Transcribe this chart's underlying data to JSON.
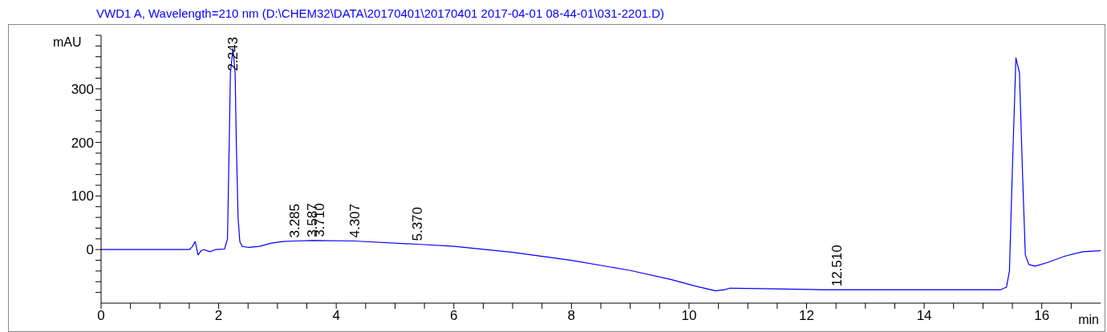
{
  "chart_data": {
    "type": "line",
    "title": "VWD1 A, Wavelength=210 nm (D:\\CHEM32\\DATA\\20170401\\20170401 2017-04-01 08-44-01\\031-2201.D)",
    "xlabel": "min",
    "ylabel": "mAU",
    "x": [
      0,
      1.5,
      1.55,
      1.6,
      1.65,
      1.7,
      1.75,
      1.85,
      1.95,
      2.1,
      2.15,
      2.18,
      2.2,
      2.243,
      2.28,
      2.3,
      2.33,
      2.36,
      2.4,
      2.5,
      2.7,
      2.9,
      3.1,
      3.3,
      3.6,
      4.3,
      5.37,
      6,
      7,
      8,
      9,
      9.7,
      10.1,
      10.45,
      10.6,
      10.7,
      11.2,
      12.3,
      13,
      14,
      15.3,
      15.4,
      15.45,
      15.5,
      15.56,
      15.62,
      15.67,
      15.72,
      15.78,
      15.89,
      16.1,
      16.4,
      16.7,
      17
    ],
    "series": [
      {
        "color": "#0000ff",
        "values": [
          0,
          0,
          5,
          15,
          -10,
          -2,
          0,
          -4,
          0,
          1,
          20,
          200,
          330,
          375,
          330,
          200,
          60,
          15,
          6,
          4,
          6,
          12,
          15,
          16,
          17,
          16,
          10,
          6,
          -5,
          -20,
          -39,
          -56,
          -68,
          -77,
          -75,
          -72,
          -73,
          -75,
          -75,
          -75,
          -75,
          -70,
          -40,
          150,
          358,
          330,
          150,
          -10,
          -28,
          -31,
          -24,
          -12,
          -4,
          -2
        ]
      }
    ],
    "annotations": [
      {
        "text": "2.243",
        "x": 2.243,
        "y": 375
      },
      {
        "text": "3.285",
        "x": 3.285,
        "y": 16
      },
      {
        "text": "3.587",
        "x": 3.587,
        "y": 17
      },
      {
        "text": "3.710",
        "x": 3.71,
        "y": 17
      },
      {
        "text": "4.307",
        "x": 4.307,
        "y": 16
      },
      {
        "text": "5.370",
        "x": 5.37,
        "y": 10
      },
      {
        "text": "12.510",
        "x": 12.51,
        "y": -75
      }
    ],
    "xlim": [
      0,
      17
    ],
    "ylim": [
      -100,
      400
    ],
    "xticks": [
      0,
      {
        "value": 0.5,
        "label": null
      },
      {
        "value": 1,
        "label": null
      },
      {
        "value": 1.5,
        "label": null
      },
      2,
      {
        "value": 2.5,
        "label": null
      },
      {
        "value": 3,
        "label": null
      },
      {
        "value": 3.5,
        "label": null
      },
      4,
      {
        "value": 4.5,
        "label": null
      },
      {
        "value": 5,
        "label": null
      },
      {
        "value": 5.5,
        "label": null
      },
      6,
      {
        "value": 6.5,
        "label": null
      },
      {
        "value": 7,
        "label": null
      },
      {
        "value": 7.5,
        "label": null
      },
      8,
      {
        "value": 8.5,
        "label": null
      },
      {
        "value": 9,
        "label": null
      },
      {
        "value": 9.5,
        "label": null
      },
      10,
      {
        "value": 10.5,
        "label": null
      },
      {
        "value": 11,
        "label": null
      },
      {
        "value": 11.5,
        "label": null
      },
      12,
      {
        "value": 12.5,
        "label": null
      },
      {
        "value": 13,
        "label": null
      },
      {
        "value": 13.5,
        "label": null
      },
      14,
      {
        "value": 14.5,
        "label": null
      },
      {
        "value": 15,
        "label": null
      },
      {
        "value": 15.5,
        "label": null
      },
      16,
      {
        "value": 16.5,
        "label": null
      }
    ],
    "yticks": [
      {
        "value": -80,
        "label": null
      },
      {
        "value": -60,
        "label": null
      },
      {
        "value": -40,
        "label": null
      },
      {
        "value": -20,
        "label": null
      },
      0,
      {
        "value": 20,
        "label": null
      },
      {
        "value": 40,
        "label": null
      },
      {
        "value": 60,
        "label": null
      },
      {
        "value": 80,
        "label": null
      },
      100,
      {
        "value": 120,
        "label": null
      },
      {
        "value": 140,
        "label": null
      },
      {
        "value": 160,
        "label": null
      },
      {
        "value": 180,
        "label": null
      },
      200,
      {
        "value": 220,
        "label": null
      },
      {
        "value": 240,
        "label": null
      },
      {
        "value": 260,
        "label": null
      },
      {
        "value": 280,
        "label": null
      },
      300,
      {
        "value": 320,
        "label": null
      },
      {
        "value": 340,
        "label": null
      },
      {
        "value": 360,
        "label": null
      },
      {
        "value": 380,
        "label": null
      },
      {
        "value": 400,
        "label": null
      }
    ],
    "grid": false,
    "legend": false,
    "marker": "none",
    "line_style": "solid"
  }
}
